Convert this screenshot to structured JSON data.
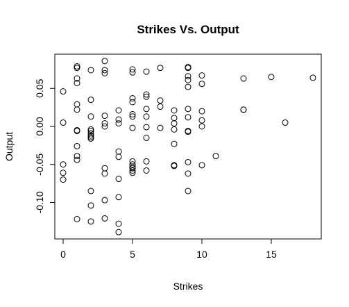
{
  "chart_data": {
    "type": "scatter",
    "title": "Strikes Vs. Output",
    "xlabel": "Strikes",
    "ylabel": "Output",
    "xlim": [
      -0.6,
      18.6
    ],
    "ylim": [
      -0.148,
      0.095
    ],
    "xticks": [
      0,
      5,
      10,
      15
    ],
    "yticks": [
      -0.1,
      -0.05,
      0.0,
      0.05
    ],
    "xtick_labels": [
      "0",
      "5",
      "10",
      "15"
    ],
    "ytick_labels": [
      "-0.10",
      "-0.05",
      "0.00",
      "0.05"
    ],
    "grid": false,
    "legend": "none",
    "points": [
      {
        "x": 0,
        "y": 0.046
      },
      {
        "x": 0,
        "y": 0.005
      },
      {
        "x": 0,
        "y": -0.05
      },
      {
        "x": 0,
        "y": -0.061
      },
      {
        "x": 0,
        "y": -0.07
      },
      {
        "x": 1,
        "y": 0.079
      },
      {
        "x": 1,
        "y": 0.077
      },
      {
        "x": 1,
        "y": 0.063
      },
      {
        "x": 1,
        "y": 0.057
      },
      {
        "x": 1,
        "y": 0.029
      },
      {
        "x": 1,
        "y": 0.022
      },
      {
        "x": 1,
        "y": -0.005
      },
      {
        "x": 1,
        "y": -0.006
      },
      {
        "x": 1,
        "y": -0.026
      },
      {
        "x": 1,
        "y": -0.039
      },
      {
        "x": 1,
        "y": -0.044
      },
      {
        "x": 1,
        "y": -0.122
      },
      {
        "x": 2,
        "y": 0.074
      },
      {
        "x": 2,
        "y": 0.035
      },
      {
        "x": 2,
        "y": 0.013
      },
      {
        "x": 2,
        "y": -0.004
      },
      {
        "x": 2,
        "y": -0.006
      },
      {
        "x": 2,
        "y": -0.009
      },
      {
        "x": 2,
        "y": -0.012
      },
      {
        "x": 2,
        "y": -0.014
      },
      {
        "x": 2,
        "y": -0.016
      },
      {
        "x": 2,
        "y": -0.085
      },
      {
        "x": 2,
        "y": -0.104
      },
      {
        "x": 2,
        "y": -0.125
      },
      {
        "x": 3,
        "y": 0.086
      },
      {
        "x": 3,
        "y": 0.074
      },
      {
        "x": 3,
        "y": 0.07
      },
      {
        "x": 3,
        "y": 0.014
      },
      {
        "x": 3,
        "y": 0.004
      },
      {
        "x": 3,
        "y": 0.0
      },
      {
        "x": 3,
        "y": -0.055
      },
      {
        "x": 3,
        "y": -0.062
      },
      {
        "x": 3,
        "y": -0.097
      },
      {
        "x": 3,
        "y": -0.121
      },
      {
        "x": 4,
        "y": 0.021
      },
      {
        "x": 4,
        "y": 0.009
      },
      {
        "x": 4,
        "y": 0.004
      },
      {
        "x": 4,
        "y": -0.033
      },
      {
        "x": 4,
        "y": -0.04
      },
      {
        "x": 4,
        "y": -0.069
      },
      {
        "x": 4,
        "y": -0.093
      },
      {
        "x": 4,
        "y": -0.128
      },
      {
        "x": 4,
        "y": -0.139
      },
      {
        "x": 5,
        "y": 0.075
      },
      {
        "x": 5,
        "y": 0.071
      },
      {
        "x": 5,
        "y": 0.037
      },
      {
        "x": 5,
        "y": 0.032
      },
      {
        "x": 5,
        "y": 0.016
      },
      {
        "x": 5,
        "y": 0.013
      },
      {
        "x": 5,
        "y": -0.002
      },
      {
        "x": 5,
        "y": -0.046
      },
      {
        "x": 5,
        "y": -0.05
      },
      {
        "x": 5,
        "y": -0.053
      },
      {
        "x": 5,
        "y": -0.055
      },
      {
        "x": 5,
        "y": -0.058
      },
      {
        "x": 5,
        "y": -0.061
      },
      {
        "x": 6,
        "y": 0.072
      },
      {
        "x": 6,
        "y": 0.042
      },
      {
        "x": 6,
        "y": 0.039
      },
      {
        "x": 6,
        "y": 0.023
      },
      {
        "x": 6,
        "y": 0.013
      },
      {
        "x": 6,
        "y": -0.001
      },
      {
        "x": 6,
        "y": -0.015
      },
      {
        "x": 6,
        "y": -0.046
      },
      {
        "x": 6,
        "y": -0.058
      },
      {
        "x": 7,
        "y": 0.077
      },
      {
        "x": 7,
        "y": 0.034
      },
      {
        "x": 7,
        "y": 0.026
      },
      {
        "x": 7,
        "y": -0.002
      },
      {
        "x": 8,
        "y": 0.021
      },
      {
        "x": 8,
        "y": 0.011
      },
      {
        "x": 8,
        "y": 0.004
      },
      {
        "x": 8,
        "y": -0.004
      },
      {
        "x": 8,
        "y": -0.023
      },
      {
        "x": 8,
        "y": -0.051
      },
      {
        "x": 8,
        "y": -0.052
      },
      {
        "x": 9,
        "y": 0.078
      },
      {
        "x": 9,
        "y": 0.077
      },
      {
        "x": 9,
        "y": 0.066
      },
      {
        "x": 9,
        "y": 0.061
      },
      {
        "x": 9,
        "y": 0.052
      },
      {
        "x": 9,
        "y": 0.023
      },
      {
        "x": 9,
        "y": 0.012
      },
      {
        "x": 9,
        "y": -0.006
      },
      {
        "x": 9,
        "y": -0.007
      },
      {
        "x": 9,
        "y": -0.047
      },
      {
        "x": 9,
        "y": -0.062
      },
      {
        "x": 9,
        "y": -0.085
      },
      {
        "x": 10,
        "y": 0.067
      },
      {
        "x": 10,
        "y": 0.056
      },
      {
        "x": 10,
        "y": 0.02
      },
      {
        "x": 10,
        "y": 0.008
      },
      {
        "x": 10,
        "y": 0.0
      },
      {
        "x": 10,
        "y": -0.051
      },
      {
        "x": 11,
        "y": -0.039
      },
      {
        "x": 13,
        "y": 0.063
      },
      {
        "x": 13,
        "y": 0.022
      },
      {
        "x": 13,
        "y": 0.022
      },
      {
        "x": 15,
        "y": 0.065
      },
      {
        "x": 16,
        "y": 0.005
      },
      {
        "x": 18,
        "y": 0.064
      }
    ]
  }
}
